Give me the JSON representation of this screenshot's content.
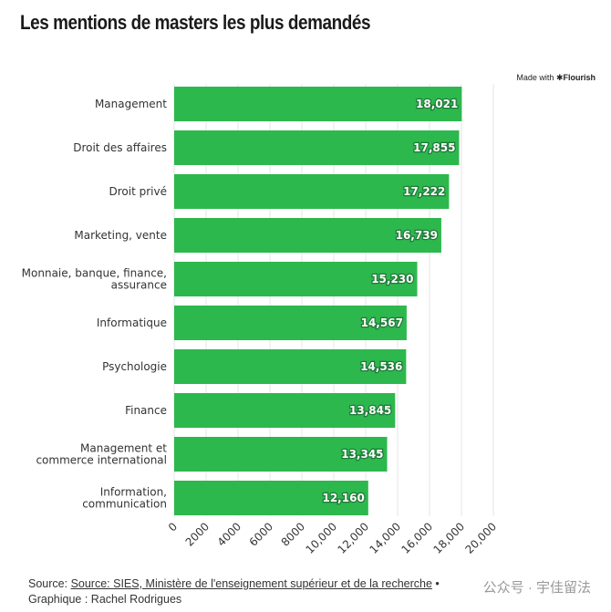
{
  "title": "Les mentions de masters les plus demandés",
  "brand": {
    "prefix": "Made with ",
    "name": "✱Flourish"
  },
  "footer": {
    "source_prefix": "Source: ",
    "source_link": "Source: SIES, Ministère de l'enseignement supérieur et de la recherche",
    "separator": " •",
    "credit": "Graphique : Rachel Rodrigues"
  },
  "watermark": "公众号 · 宇佳留法",
  "colors": {
    "bar": "#2db84d",
    "grid": "#e6e6e6"
  },
  "chart_data": {
    "type": "bar",
    "orientation": "horizontal",
    "categories": [
      "Management",
      "Droit des affaires",
      "Droit privé",
      "Marketing, vente",
      "Monnaie, banque, finance, assurance",
      "Informatique",
      "Psychologie",
      "Finance",
      "Management et commerce international",
      "Information, communication"
    ],
    "category_lines": [
      [
        "Management"
      ],
      [
        "Droit des affaires"
      ],
      [
        "Droit privé"
      ],
      [
        "Marketing, vente"
      ],
      [
        "Monnaie, banque, finance,",
        "assurance"
      ],
      [
        "Informatique"
      ],
      [
        "Psychologie"
      ],
      [
        "Finance"
      ],
      [
        "Management et",
        "commerce international"
      ],
      [
        "Information,",
        "communication"
      ]
    ],
    "values": [
      18021,
      17855,
      17222,
      16739,
      15230,
      14567,
      14536,
      13845,
      13345,
      12160
    ],
    "value_labels": [
      "18,021",
      "17,855",
      "17,222",
      "16,739",
      "15,230",
      "14,567",
      "14,536",
      "13,845",
      "13,345",
      "12,160"
    ],
    "xlim": [
      0,
      20000
    ],
    "xticks": [
      0,
      2000,
      4000,
      6000,
      8000,
      10000,
      12000,
      14000,
      16000,
      18000,
      20000
    ],
    "xtick_labels": [
      "0",
      "2000",
      "4000",
      "6000",
      "8000",
      "10,000",
      "12,000",
      "14,000",
      "16,000",
      "18,000",
      "20,000"
    ],
    "grid": true
  }
}
